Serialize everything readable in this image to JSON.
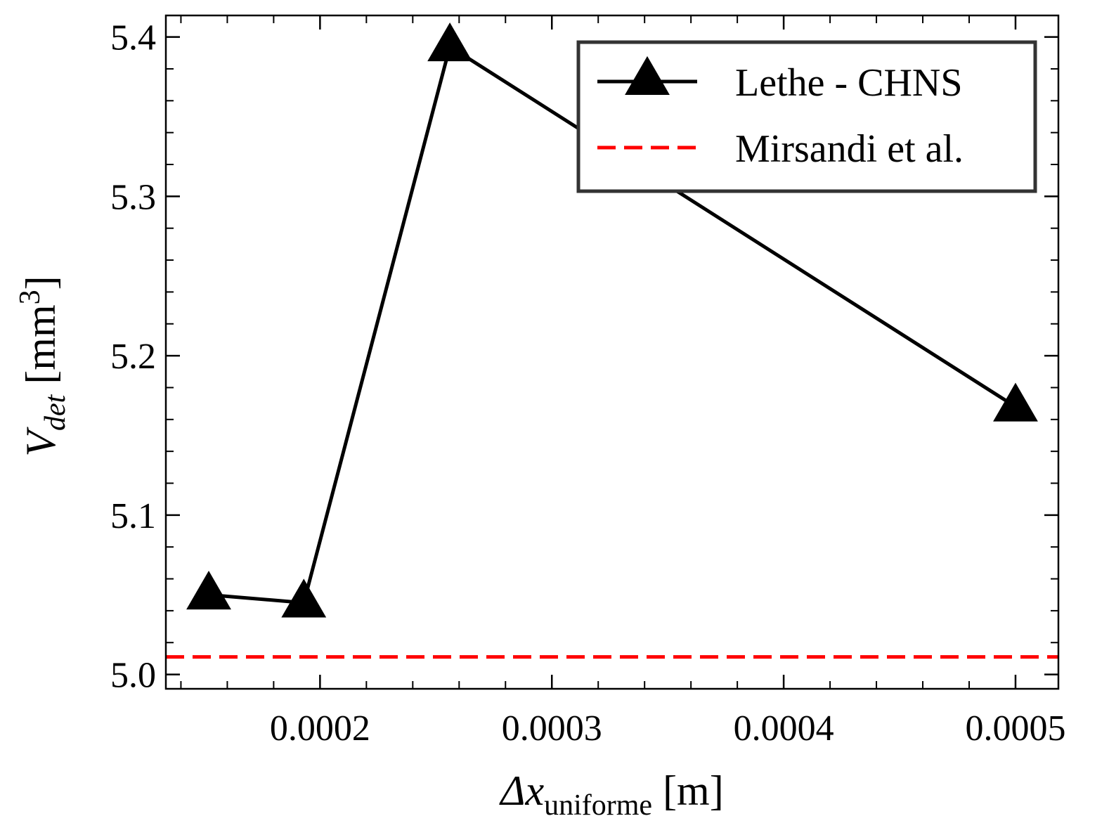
{
  "chart_data": {
    "type": "line",
    "title": "",
    "xlabel": {
      "main": "Δx",
      "sub": "uniforme",
      "unit": " [m]"
    },
    "ylabel": {
      "main": "V",
      "sub": "det",
      "unit": " [mm",
      "sup": "3",
      "close": "]"
    },
    "xlim": [
      0.0001335,
      0.0005185
    ],
    "ylim": [
      4.991,
      5.4135
    ],
    "x_ticks": [
      {
        "value": 0.0002,
        "label": "0.0002"
      },
      {
        "value": 0.0003,
        "label": "0.0003"
      },
      {
        "value": 0.0004,
        "label": "0.0004"
      },
      {
        "value": 0.0005,
        "label": "0.0005"
      }
    ],
    "x_minor_step": 2e-05,
    "y_ticks": [
      {
        "value": 5.0,
        "label": "5.0"
      },
      {
        "value": 5.1,
        "label": "5.1"
      },
      {
        "value": 5.2,
        "label": "5.2"
      },
      {
        "value": 5.3,
        "label": "5.3"
      },
      {
        "value": 5.4,
        "label": "5.4"
      }
    ],
    "y_minor_step": 0.02,
    "grid": false,
    "legend_position": "top-right",
    "series": [
      {
        "name": "Lethe - CHNS",
        "color": "#000000",
        "marker": "triangle-up",
        "line_style": "solid",
        "x": [
          0.000152,
          0.000193,
          0.000256,
          0.0005
        ],
        "y": [
          5.05,
          5.045,
          5.394,
          5.168
        ]
      },
      {
        "name": "Mirsandi et al.",
        "color": "#ff0000",
        "marker": "none",
        "line_style": "dashed",
        "y_constant": 5.011
      }
    ]
  }
}
